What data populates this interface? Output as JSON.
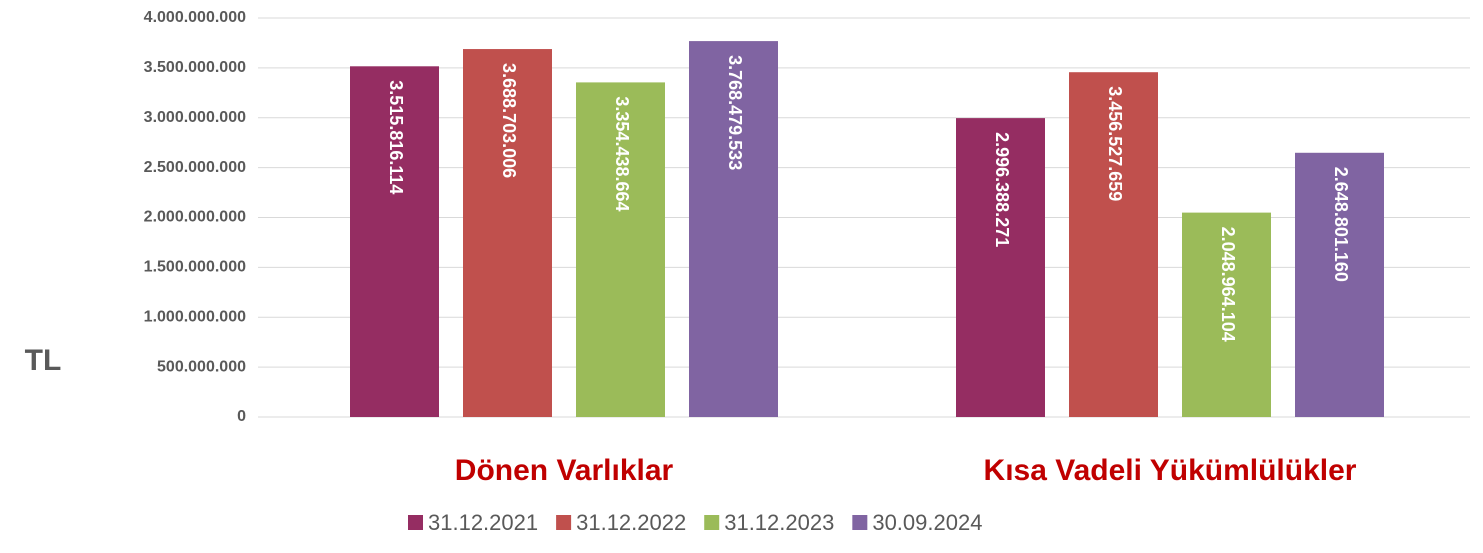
{
  "chart_data": {
    "type": "bar",
    "ylabel": "TL",
    "categories": [
      "Dönen Varlıklar",
      "Kısa Vadeli Yükümlülükler"
    ],
    "series": [
      {
        "name": "31.12.2021",
        "color": "#952d62",
        "values": [
          3515816114,
          2996388271
        ],
        "value_labels": [
          "3.515.816.114",
          "2.996.388.271"
        ]
      },
      {
        "name": "31.12.2022",
        "color": "#c0504d",
        "values": [
          3688703006,
          3456527659
        ],
        "value_labels": [
          "3.688.703.006",
          "3.456.527.659"
        ]
      },
      {
        "name": "31.12.2023",
        "color": "#9bbb59",
        "values": [
          3354438664,
          2048964104
        ],
        "value_labels": [
          "3.354.438.664",
          "2.048.964.104"
        ]
      },
      {
        "name": "30.09.2024",
        "color": "#8064a2",
        "values": [
          3768479533,
          2648801160
        ],
        "value_labels": [
          "3.768.479.533",
          "2.648.801.160"
        ]
      }
    ],
    "ylim": [
      0,
      4000000000
    ],
    "yticks": [
      0,
      {
        "value": 500000000,
        "label": "500.000.000"
      },
      {
        "value": 1000000000,
        "label": "1.000.000.000"
      },
      {
        "value": 1500000000,
        "label": "1.500.000.000"
      },
      {
        "value": 2000000000,
        "label": "2.000.000.000"
      },
      {
        "value": 2500000000,
        "label": "2.500.000.000"
      },
      {
        "value": 3000000000,
        "label": "3.000.000.000"
      },
      {
        "value": 3500000000,
        "label": "3.500.000.000"
      },
      {
        "value": 4000000000,
        "label": "4.000.000.000"
      }
    ],
    "grid": true,
    "legend": "bottom"
  }
}
